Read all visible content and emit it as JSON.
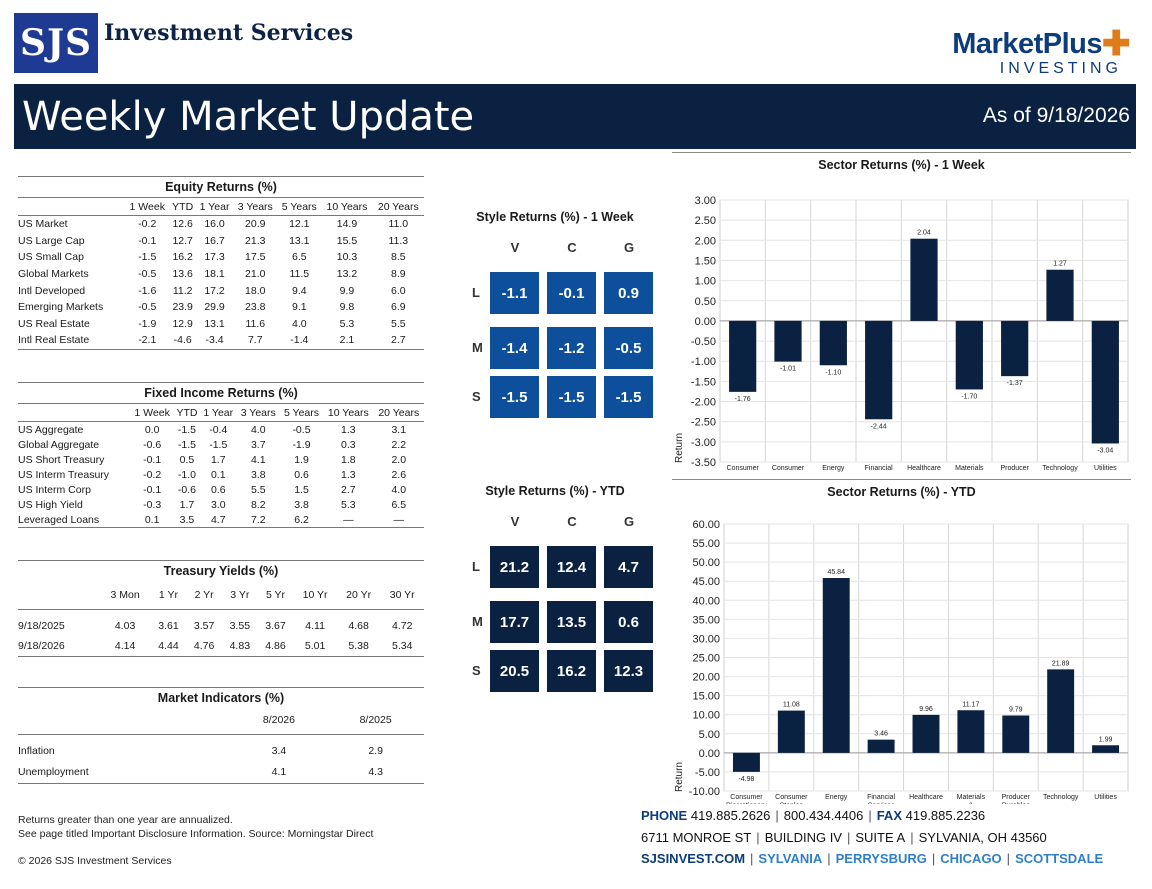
{
  "header": {
    "logo_left_mark": "SJS",
    "logo_left_text": "Investment Services",
    "logo_right_main": "MarketPlus",
    "logo_right_sub": "INVESTING",
    "title": "Weekly Market Update",
    "as_of": "As of 9/18/2026"
  },
  "equity": {
    "title": "Equity Returns (%)",
    "columns": [
      "",
      "1 Week",
      "YTD",
      "1 Year",
      "3 Years",
      "5 Years",
      "10 Years",
      "20 Years"
    ],
    "rows": [
      [
        "US Market",
        "-0.2",
        "12.6",
        "16.0",
        "20.9",
        "12.1",
        "14.9",
        "11.0"
      ],
      [
        "US Large Cap",
        "-0.1",
        "12.7",
        "16.7",
        "21.3",
        "13.1",
        "15.5",
        "11.3"
      ],
      [
        "US Small Cap",
        "-1.5",
        "16.2",
        "17.3",
        "17.5",
        "6.5",
        "10.3",
        "8.5"
      ],
      [
        "Global Markets",
        "-0.5",
        "13.6",
        "18.1",
        "21.0",
        "11.5",
        "13.2",
        "8.9"
      ],
      [
        "Intl Developed",
        "-1.6",
        "11.2",
        "17.2",
        "18.0",
        "9.4",
        "9.9",
        "6.0"
      ],
      [
        "Emerging Markets",
        "-0.5",
        "23.9",
        "29.9",
        "23.8",
        "9.1",
        "9.8",
        "6.9"
      ],
      [
        "US Real Estate",
        "-1.9",
        "12.9",
        "13.1",
        "11.6",
        "4.0",
        "5.3",
        "5.5"
      ],
      [
        "Intl Real Estate",
        "-2.1",
        "-4.6",
        "-3.4",
        "7.7",
        "-1.4",
        "2.1",
        "2.7"
      ]
    ]
  },
  "fixed_income": {
    "title": "Fixed Income Returns (%)",
    "columns": [
      "",
      "1 Week",
      "YTD",
      "1 Year",
      "3 Years",
      "5 Years",
      "10 Years",
      "20 Years"
    ],
    "rows": [
      [
        "US Aggregate",
        "0.0",
        "-1.5",
        "-0.4",
        "4.0",
        "-0.5",
        "1.3",
        "3.1"
      ],
      [
        "Global Aggregate",
        "-0.6",
        "-1.5",
        "-1.5",
        "3.7",
        "-1.9",
        "0.3",
        "2.2"
      ],
      [
        "US Short Treasury",
        "-0.1",
        "0.5",
        "1.7",
        "4.1",
        "1.9",
        "1.8",
        "2.0"
      ],
      [
        "US Interm Treasury",
        "-0.2",
        "-1.0",
        "0.1",
        "3.8",
        "0.6",
        "1.3",
        "2.6"
      ],
      [
        "US Interm Corp",
        "-0.1",
        "-0.6",
        "0.6",
        "5.5",
        "1.5",
        "2.7",
        "4.0"
      ],
      [
        "US High Yield",
        "-0.3",
        "1.7",
        "3.0",
        "8.2",
        "3.8",
        "5.3",
        "6.5"
      ],
      [
        "Leveraged Loans",
        "0.1",
        "3.5",
        "4.7",
        "7.2",
        "6.2",
        "—",
        "—"
      ]
    ]
  },
  "treasury": {
    "title": "Treasury Yields (%)",
    "columns": [
      "",
      "3 Mon",
      "1 Yr",
      "2 Yr",
      "3 Yr",
      "5 Yr",
      "10 Yr",
      "20 Yr",
      "30 Yr"
    ],
    "rows": [
      [
        "9/18/2025",
        "4.03",
        "3.61",
        "3.57",
        "3.55",
        "3.67",
        "4.11",
        "4.68",
        "4.72"
      ],
      [
        "9/18/2026",
        "4.14",
        "4.44",
        "4.76",
        "4.83",
        "4.86",
        "5.01",
        "5.38",
        "5.34"
      ]
    ]
  },
  "indicators": {
    "title": "Market Indicators (%)",
    "columns": [
      "",
      "8/2026",
      "8/2025"
    ],
    "rows": [
      [
        "Inflation",
        "3.4",
        "2.9"
      ],
      [
        "Unemployment",
        "4.1",
        "4.3"
      ]
    ]
  },
  "style_week": {
    "title": "Style Returns (%) - 1 Week",
    "cols": [
      "V",
      "C",
      "G"
    ],
    "rows": [
      "L",
      "M",
      "S"
    ],
    "values": [
      [
        "-1.1",
        "-0.1",
        "0.9"
      ],
      [
        "-1.4",
        "-1.2",
        "-0.5"
      ],
      [
        "-1.5",
        "-1.5",
        "-1.5"
      ]
    ]
  },
  "style_ytd": {
    "title": "Style Returns (%) - YTD",
    "cols": [
      "V",
      "C",
      "G"
    ],
    "rows": [
      "L",
      "M",
      "S"
    ],
    "values": [
      [
        "21.2",
        "12.4",
        "4.7"
      ],
      [
        "17.7",
        "13.5",
        "0.6"
      ],
      [
        "20.5",
        "16.2",
        "12.3"
      ]
    ]
  },
  "chart_data": [
    {
      "type": "bar",
      "title": "Sector Returns (%) - 1 Week",
      "ylabel": "Return",
      "categories": [
        "Consumer Discretionary",
        "Consumer Staples",
        "Energy",
        "Financial Services",
        "Healthcare",
        "Materials & Processing",
        "Producer Durables",
        "Technology",
        "Utilities"
      ],
      "values": [
        -1.76,
        -1.01,
        -1.1,
        -2.44,
        2.04,
        -1.7,
        -1.37,
        1.27,
        -3.04
      ],
      "value_labels": [
        "-1.76",
        "-1.01",
        "-1.10",
        "-2.44",
        "2.04",
        "-1.70",
        "-1.37",
        "1.27",
        "-3.04"
      ],
      "ylim": [
        -3.5,
        3.0
      ],
      "yticks": [
        "3.00",
        "2.50",
        "2.00",
        "1.50",
        "1.00",
        "0.50",
        "0.00",
        "-0.50",
        "-1.00",
        "-1.50",
        "-2.00",
        "-2.50",
        "-3.00",
        "-3.50"
      ],
      "ytick_values": [
        3,
        2.5,
        2,
        1.5,
        1,
        0.5,
        0,
        -0.5,
        -1,
        -1.5,
        -2,
        -2.5,
        -3,
        -3.5
      ],
      "grid": true,
      "color": "#0b2141"
    },
    {
      "type": "bar",
      "title": "Sector Returns (%) - YTD",
      "ylabel": "Return",
      "categories": [
        "Consumer Discretionary",
        "Consumer Staples",
        "Energy",
        "Financial Services",
        "Healthcare",
        "Materials & Processing",
        "Producer Durables",
        "Technology",
        "Utilities"
      ],
      "values": [
        -4.98,
        11.08,
        45.84,
        3.46,
        9.96,
        11.17,
        9.79,
        21.89,
        1.99
      ],
      "value_labels": [
        "-4.98",
        "11.08",
        "45.84",
        "3.46",
        "9.96",
        "11.17",
        "9.79",
        "21.89",
        "1.99"
      ],
      "ylim": [
        -10,
        60
      ],
      "yticks": [
        "60.00",
        "55.00",
        "50.00",
        "45.00",
        "40.00",
        "35.00",
        "30.00",
        "25.00",
        "20.00",
        "15.00",
        "10.00",
        "5.00",
        "0.00",
        "-5.00",
        "-10.00"
      ],
      "ytick_values": [
        60,
        55,
        50,
        45,
        40,
        35,
        30,
        25,
        20,
        15,
        10,
        5,
        0,
        -5,
        -10
      ],
      "grid": true,
      "color": "#0b2141"
    }
  ],
  "chart_category_lines": [
    [
      "Consumer",
      "Discretionary"
    ],
    [
      "Consumer",
      "Staples"
    ],
    [
      "Energy"
    ],
    [
      "Financial",
      "Services"
    ],
    [
      "Healthcare"
    ],
    [
      "Materials",
      "&",
      "Processing"
    ],
    [
      "Producer",
      "Durables"
    ],
    [
      "Technology"
    ],
    [
      "Utilities"
    ]
  ],
  "footer": {
    "note1": "Returns greater than one year are annualized.",
    "note2": "See page titled Important Disclosure Information. Source: Morningstar Direct",
    "copyright": "© 2026 SJS Investment Services",
    "phone_label": "PHONE",
    "phone": "419.885.2626",
    "phone2": "800.434.4406",
    "fax_label": "FAX",
    "fax": "419.885.2236",
    "addr1": "6711 MONROE ST",
    "addr2": "BUILDING IV",
    "addr3": "SUITE A",
    "addr4": "SYLVANIA, OH 43560",
    "web": "SJSINVEST.COM",
    "loc1": "SYLVANIA",
    "loc2": "PERRYSBURG",
    "loc3": "CHICAGO",
    "loc4": "SCOTTSDALE"
  }
}
